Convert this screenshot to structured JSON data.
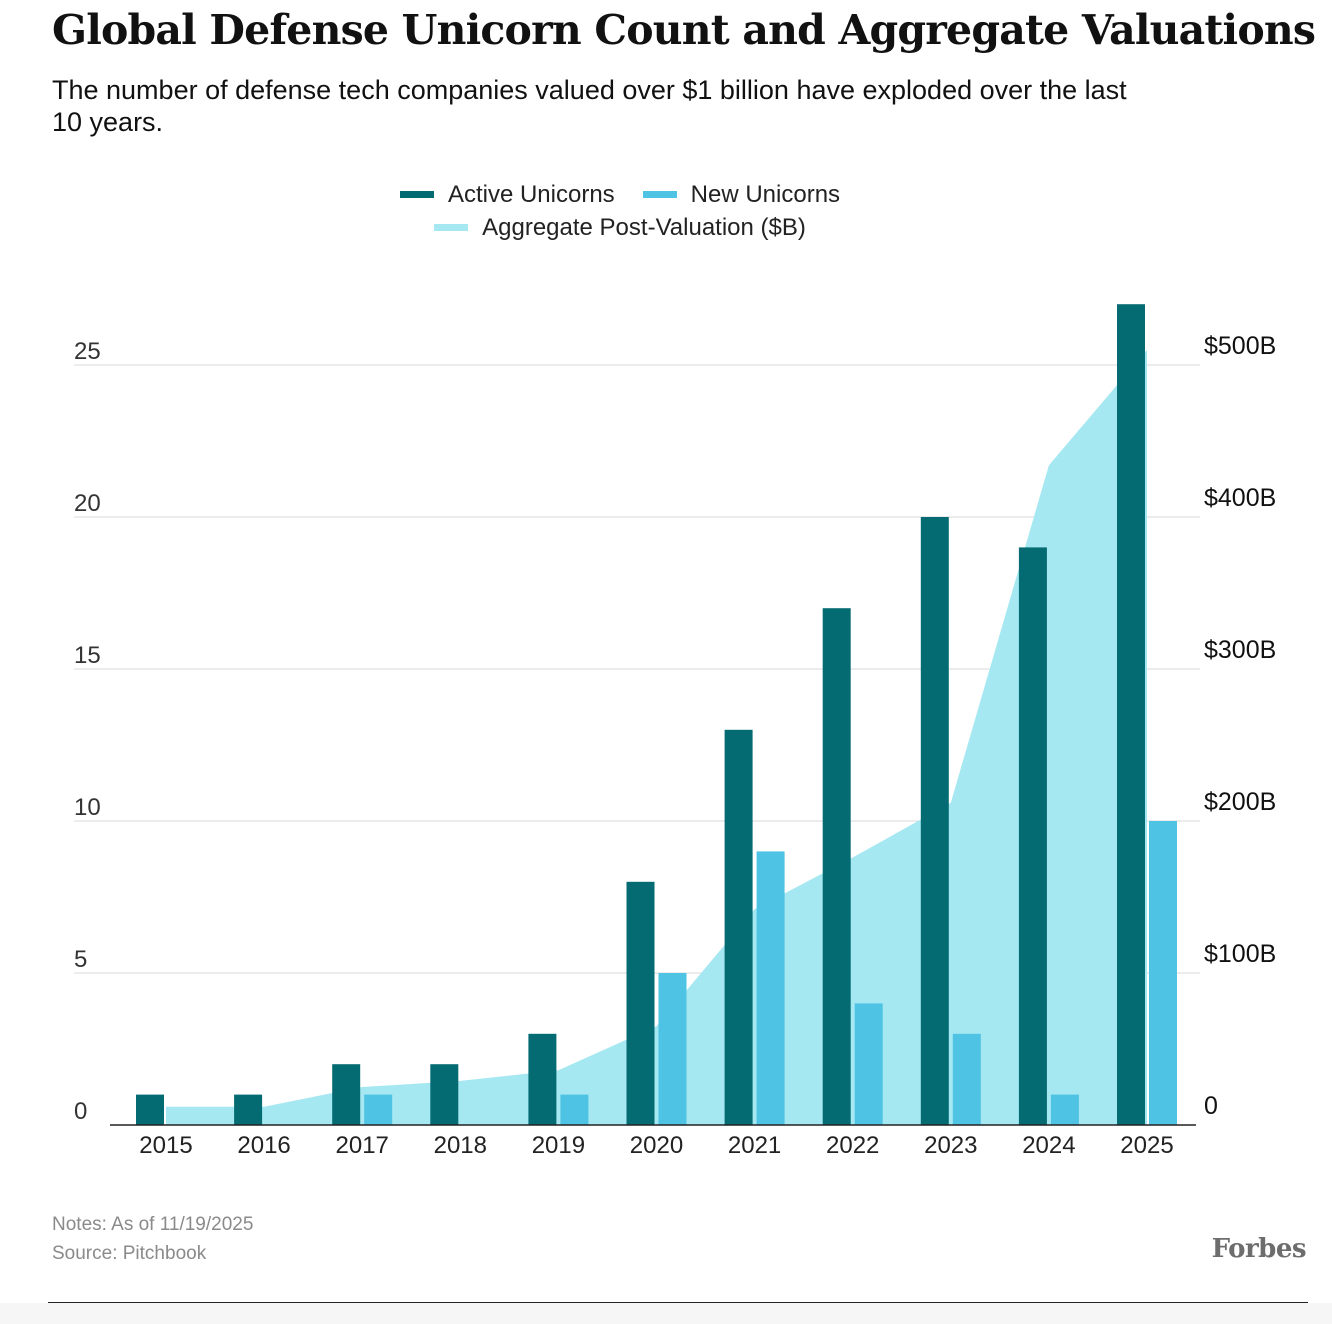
{
  "header": {
    "title": "Global Defense Unicorn Count and Aggregate Valuations",
    "subtitle": "The number of defense tech companies valued over $1 billion have exploded over the last 10 years."
  },
  "footer": {
    "notes": "Notes: As of 11/19/2025",
    "source": "Source: Pitchbook",
    "logo": "Forbes"
  },
  "chart_data": {
    "type": "bar",
    "title": "Global Defense Unicorn Count and Aggregate Valuations",
    "categories": [
      "2015",
      "2016",
      "2017",
      "2018",
      "2019",
      "2020",
      "2021",
      "2022",
      "2023",
      "2024",
      "2025"
    ],
    "series": [
      {
        "name": "Active Unicorns",
        "type": "bar",
        "axis": "left",
        "color": "#046b73",
        "values": [
          1,
          1,
          2,
          2,
          3,
          8,
          13,
          17,
          20,
          19,
          27
        ]
      },
      {
        "name": "New Unicorns",
        "type": "bar",
        "axis": "left",
        "color": "#4fc3e3",
        "values": [
          0,
          0,
          1,
          0,
          1,
          5,
          9,
          4,
          3,
          1,
          10
        ]
      },
      {
        "name": "Aggregate Post-Valuation ($B)",
        "type": "area",
        "axis": "right",
        "color": "#a6e8f1",
        "values": [
          12,
          12,
          25,
          29,
          36,
          65,
          142,
          176,
          212,
          434,
          510
        ]
      }
    ],
    "y_left": {
      "ylim": [
        0,
        25
      ],
      "ticks": [
        0,
        5,
        10,
        15,
        20,
        25
      ],
      "tick_labels": [
        "0",
        "5",
        "10",
        "15",
        "20",
        "25"
      ]
    },
    "y_right": {
      "ylim": [
        0,
        500
      ],
      "ticks": [
        0,
        100,
        200,
        300,
        400,
        500
      ],
      "tick_labels": [
        "0",
        "$100B",
        "$200B",
        "$300B",
        "$400B",
        "$500B"
      ]
    },
    "grid": true,
    "legend_placement": "top-center"
  }
}
